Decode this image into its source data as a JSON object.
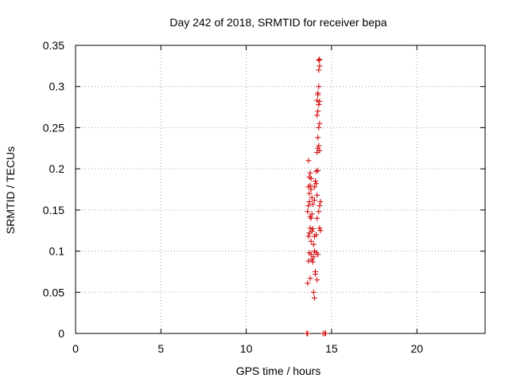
{
  "chart_data": {
    "type": "scatter",
    "title": "Day 242 of 2018, SRMTID for receiver bepa",
    "xlabel": "GPS time / hours",
    "ylabel": "SRMTID / TECUs",
    "xlim": [
      0,
      24
    ],
    "ylim": [
      0,
      0.35
    ],
    "xticks": [
      0,
      5,
      10,
      15,
      20
    ],
    "xtick_labels": [
      "0",
      "5",
      "10",
      "15",
      "20"
    ],
    "yticks": [
      0,
      0.05,
      0.1,
      0.15,
      0.2,
      0.25,
      0.3,
      0.35
    ],
    "ytick_labels": [
      "0",
      "0.05",
      "0.1",
      "0.15",
      "0.2",
      "0.25",
      "0.3",
      "0.35"
    ],
    "grid": true,
    "marker": "plus",
    "color": "#d00000",
    "series": [
      {
        "name": "SRMTID",
        "points": [
          [
            13.55,
            0
          ],
          [
            13.6,
            0
          ],
          [
            14.5,
            0
          ],
          [
            14.6,
            0
          ],
          [
            14.65,
            0
          ],
          [
            13.6,
            0.061
          ],
          [
            13.75,
            0.067
          ],
          [
            13.95,
            0.05
          ],
          [
            14.0,
            0.043
          ],
          [
            14.15,
            0.065
          ],
          [
            13.7,
            0.098
          ],
          [
            13.65,
            0.088
          ],
          [
            13.8,
            0.096
          ],
          [
            13.85,
            0.09
          ],
          [
            13.9,
            0.087
          ],
          [
            13.95,
            0.093
          ],
          [
            14.0,
            0.1
          ],
          [
            14.05,
            0.075
          ],
          [
            14.05,
            0.072
          ],
          [
            14.1,
            0.098
          ],
          [
            14.2,
            0.096
          ],
          [
            13.65,
            0.118
          ],
          [
            13.7,
            0.122
          ],
          [
            13.75,
            0.128
          ],
          [
            13.8,
            0.112
          ],
          [
            13.85,
            0.124
          ],
          [
            13.9,
            0.127
          ],
          [
            13.95,
            0.108
          ],
          [
            14.0,
            0.118
          ],
          [
            14.1,
            0.12
          ],
          [
            14.15,
            0.14
          ],
          [
            14.3,
            0.128
          ],
          [
            14.35,
            0.125
          ],
          [
            13.6,
            0.148
          ],
          [
            13.65,
            0.155
          ],
          [
            13.7,
            0.16
          ],
          [
            13.75,
            0.142
          ],
          [
            13.8,
            0.14
          ],
          [
            13.85,
            0.145
          ],
          [
            13.9,
            0.157
          ],
          [
            14.0,
            0.162
          ],
          [
            14.25,
            0.148
          ],
          [
            14.3,
            0.155
          ],
          [
            14.35,
            0.16
          ],
          [
            13.65,
            0.178
          ],
          [
            13.7,
            0.17
          ],
          [
            13.75,
            0.18
          ],
          [
            13.8,
            0.175
          ],
          [
            13.85,
            0.165
          ],
          [
            14.0,
            0.178
          ],
          [
            14.05,
            0.185
          ],
          [
            14.1,
            0.182
          ],
          [
            14.15,
            0.168
          ],
          [
            13.65,
            0.21
          ],
          [
            13.7,
            0.19
          ],
          [
            13.75,
            0.195
          ],
          [
            13.8,
            0.188
          ],
          [
            14.1,
            0.197
          ],
          [
            14.2,
            0.198
          ],
          [
            14.15,
            0.22
          ],
          [
            14.2,
            0.225
          ],
          [
            14.25,
            0.228
          ],
          [
            14.3,
            0.222
          ],
          [
            14.2,
            0.238
          ],
          [
            14.25,
            0.25
          ],
          [
            14.3,
            0.255
          ],
          [
            14.15,
            0.265
          ],
          [
            14.2,
            0.27
          ],
          [
            14.25,
            0.278
          ],
          [
            14.3,
            0.282
          ],
          [
            14.15,
            0.283
          ],
          [
            14.2,
            0.29
          ],
          [
            14.25,
            0.3
          ],
          [
            14.2,
            0.292
          ],
          [
            14.25,
            0.32
          ],
          [
            14.3,
            0.325
          ],
          [
            14.25,
            0.332
          ],
          [
            14.3,
            0.333
          ]
        ]
      }
    ]
  }
}
